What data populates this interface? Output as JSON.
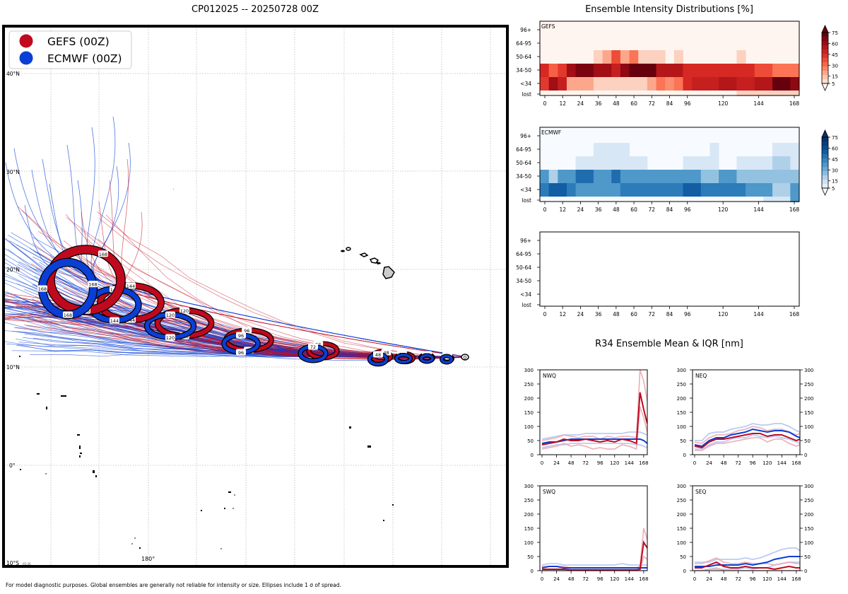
{
  "map": {
    "title": "CP012025 -- 20250728 00Z",
    "lat_labels": [
      "40°N",
      "30°N",
      "20°N",
      "10°N",
      "0°",
      "10°S"
    ],
    "lon_label": "180°",
    "small_stamp": "05:26",
    "legend": [
      {
        "label": "GEFS (00Z)",
        "color": "#c0091e"
      },
      {
        "label": "ECMWF (00Z)",
        "color": "#0a3fd6"
      }
    ],
    "footnote": "For model diagnostic purposes. Global ensembles are generally not reliable for intensity or size. Ellipses include 1 σ of spread."
  },
  "colors": {
    "gefs": "#c0091e",
    "gefs_light": "#e8a3ad",
    "ecmwf": "#0a3fd6",
    "ecmwf_light": "#a9bff0"
  },
  "chart_data": [
    {
      "type": "heatmap",
      "title": "Ensemble Intensity Distributions [%]",
      "panel_label": "GEFS",
      "y_categories": [
        "96+",
        "64-95",
        "50-64",
        "34-50",
        "<34",
        "lost"
      ],
      "x_ticks": [
        "0",
        "12",
        "24",
        "36",
        "48",
        "60",
        "72",
        "84",
        "96",
        "120",
        "144",
        "168"
      ],
      "colorbar_ticks": [
        "5",
        "15",
        "30",
        "45",
        "60",
        "75"
      ],
      "x_hours": [
        0,
        6,
        12,
        18,
        24,
        30,
        36,
        42,
        48,
        54,
        60,
        66,
        72,
        78,
        84,
        90,
        96,
        102,
        108,
        114,
        120,
        126,
        132,
        138,
        144,
        150,
        156,
        162,
        168
      ],
      "values": {
        "50-64": [
          0,
          0,
          0,
          0,
          0,
          0,
          10,
          20,
          40,
          20,
          30,
          10,
          10,
          10,
          0,
          10,
          0,
          0,
          0,
          0,
          0,
          0,
          10,
          0,
          0,
          0,
          0,
          0,
          0
        ],
        "34-50": [
          50,
          35,
          45,
          65,
          75,
          75,
          65,
          65,
          55,
          70,
          80,
          80,
          80,
          60,
          60,
          60,
          50,
          50,
          50,
          50,
          50,
          50,
          50,
          50,
          40,
          40,
          30,
          30,
          30
        ],
        "<34": [
          45,
          65,
          55,
          20,
          20,
          20,
          10,
          10,
          10,
          10,
          10,
          10,
          20,
          30,
          25,
          30,
          50,
          55,
          55,
          55,
          60,
          60,
          55,
          55,
          60,
          60,
          80,
          80,
          70
        ],
        "lost": [
          0,
          0,
          0,
          0,
          0,
          0,
          0,
          0,
          0,
          0,
          0,
          0,
          0,
          0,
          0,
          0,
          0,
          0,
          0,
          0,
          0,
          0,
          10,
          10,
          10,
          10,
          10,
          10,
          10
        ]
      }
    },
    {
      "type": "heatmap",
      "panel_label": "ECMWF",
      "y_categories": [
        "96+",
        "64-95",
        "50-64",
        "34-50",
        "<34",
        "lost"
      ],
      "x_ticks": [
        "0",
        "12",
        "24",
        "36",
        "48",
        "60",
        "72",
        "84",
        "96",
        "120",
        "144",
        "168"
      ],
      "colorbar_ticks": [
        "5",
        "15",
        "30",
        "45",
        "60",
        "75"
      ],
      "x_hours": [
        0,
        6,
        12,
        18,
        24,
        30,
        36,
        42,
        48,
        54,
        60,
        66,
        72,
        78,
        84,
        90,
        96,
        102,
        108,
        114,
        120,
        126,
        132,
        138,
        144,
        150,
        156,
        162,
        168
      ],
      "values": {
        "64-95": [
          0,
          0,
          0,
          0,
          0,
          0,
          10,
          10,
          10,
          10,
          0,
          0,
          0,
          0,
          0,
          0,
          0,
          0,
          0,
          10,
          0,
          0,
          0,
          0,
          0,
          0,
          10,
          10,
          10
        ],
        "50-64": [
          0,
          0,
          0,
          0,
          10,
          10,
          10,
          10,
          10,
          10,
          10,
          10,
          0,
          0,
          0,
          0,
          10,
          10,
          10,
          10,
          0,
          0,
          10,
          10,
          10,
          10,
          20,
          20,
          10
        ],
        "34-50": [
          40,
          20,
          40,
          40,
          55,
          55,
          40,
          40,
          55,
          40,
          40,
          40,
          40,
          40,
          40,
          40,
          40,
          40,
          25,
          25,
          40,
          40,
          25,
          25,
          25,
          25,
          25,
          25,
          25
        ],
        "<34": [
          50,
          60,
          60,
          50,
          40,
          40,
          40,
          40,
          40,
          50,
          50,
          50,
          50,
          50,
          50,
          50,
          60,
          60,
          50,
          50,
          50,
          50,
          50,
          40,
          40,
          40,
          20,
          20,
          40
        ],
        "lost": [
          0,
          0,
          0,
          0,
          0,
          0,
          0,
          0,
          0,
          0,
          0,
          0,
          0,
          0,
          0,
          0,
          0,
          0,
          0,
          0,
          0,
          0,
          0,
          0,
          0,
          10,
          10,
          10,
          40
        ]
      }
    },
    {
      "type": "heatmap",
      "panel_label": "",
      "y_categories": [
        "96+",
        "64-95",
        "50-64",
        "34-50",
        "<34",
        "lost"
      ],
      "x_ticks": [
        "0",
        "12",
        "24",
        "36",
        "48",
        "60",
        "72",
        "84",
        "96",
        "120",
        "144",
        "168"
      ],
      "values": {}
    },
    {
      "type": "line",
      "title": "R34 Ensemble Mean & IQR [nm]",
      "panel_label": "NWQ",
      "x_ticks": [
        "0",
        "24",
        "48",
        "72",
        "96",
        "120",
        "144",
        "168"
      ],
      "y_ticks": [
        "0",
        "50",
        "100",
        "150",
        "200",
        "250",
        "300"
      ],
      "ylim": [
        0,
        300
      ],
      "x": [
        0,
        12,
        24,
        36,
        48,
        60,
        72,
        84,
        96,
        108,
        120,
        132,
        144,
        156,
        162,
        168,
        174
      ],
      "series": [
        {
          "name": "GEFS mean",
          "values": [
            35,
            40,
            45,
            55,
            50,
            50,
            55,
            50,
            45,
            50,
            45,
            55,
            50,
            40,
            220,
            160,
            110
          ]
        },
        {
          "name": "GEFS IQR low",
          "values": [
            20,
            25,
            30,
            40,
            30,
            35,
            30,
            20,
            25,
            20,
            20,
            35,
            30,
            20,
            170,
            130,
            80
          ]
        },
        {
          "name": "GEFS IQR high",
          "values": [
            50,
            55,
            60,
            70,
            65,
            60,
            65,
            65,
            55,
            65,
            60,
            65,
            65,
            60,
            300,
            260,
            190
          ]
        },
        {
          "name": "ECMWF mean",
          "values": [
            40,
            45,
            45,
            50,
            55,
            55,
            55,
            55,
            55,
            55,
            55,
            55,
            55,
            55,
            55,
            50,
            40
          ]
        },
        {
          "name": "ECMWF IQR low",
          "values": [
            25,
            30,
            35,
            35,
            40,
            40,
            40,
            40,
            40,
            40,
            40,
            40,
            40,
            35,
            35,
            30,
            25
          ]
        },
        {
          "name": "ECMWF IQR high",
          "values": [
            55,
            60,
            65,
            70,
            70,
            70,
            75,
            75,
            75,
            75,
            75,
            75,
            80,
            80,
            80,
            75,
            70
          ]
        }
      ]
    },
    {
      "type": "line",
      "panel_label": "NEQ",
      "x_ticks": [
        "0",
        "24",
        "48",
        "72",
        "96",
        "120",
        "144",
        "168"
      ],
      "y_ticks": [
        "0",
        "50",
        "100",
        "150",
        "200",
        "250",
        "300"
      ],
      "ylim": [
        0,
        300
      ],
      "x": [
        0,
        12,
        24,
        36,
        48,
        60,
        72,
        84,
        96,
        108,
        120,
        132,
        144,
        156,
        168,
        174
      ],
      "series": [
        {
          "name": "GEFS mean",
          "values": [
            30,
            25,
            45,
            55,
            55,
            60,
            65,
            70,
            75,
            75,
            65,
            70,
            70,
            60,
            50,
            55
          ]
        },
        {
          "name": "GEFS IQR low",
          "values": [
            15,
            15,
            30,
            40,
            40,
            45,
            50,
            55,
            60,
            60,
            45,
            55,
            55,
            40,
            30,
            35
          ]
        },
        {
          "name": "GEFS IQR high",
          "values": [
            45,
            40,
            60,
            70,
            70,
            75,
            85,
            90,
            100,
            95,
            85,
            90,
            90,
            80,
            70,
            75
          ]
        },
        {
          "name": "ECMWF mean",
          "values": [
            35,
            30,
            50,
            60,
            60,
            70,
            75,
            80,
            90,
            85,
            80,
            85,
            85,
            80,
            65,
            60
          ]
        },
        {
          "name": "ECMWF IQR low",
          "values": [
            20,
            20,
            35,
            45,
            45,
            55,
            60,
            60,
            70,
            65,
            60,
            65,
            60,
            55,
            45,
            40
          ]
        },
        {
          "name": "ECMWF IQR high",
          "values": [
            50,
            50,
            75,
            80,
            80,
            90,
            95,
            100,
            110,
            105,
            105,
            110,
            110,
            100,
            85,
            80
          ]
        }
      ]
    },
    {
      "type": "line",
      "panel_label": "SWQ",
      "x_ticks": [
        "0",
        "24",
        "48",
        "72",
        "96",
        "120",
        "144",
        "168"
      ],
      "y_ticks": [
        "0",
        "50",
        "100",
        "150",
        "200",
        "250",
        "300"
      ],
      "ylim": [
        0,
        300
      ],
      "x": [
        0,
        12,
        24,
        36,
        48,
        60,
        72,
        84,
        96,
        108,
        120,
        132,
        144,
        156,
        162,
        168,
        174
      ],
      "series": [
        {
          "name": "GEFS mean",
          "values": [
            5,
            5,
            5,
            5,
            3,
            3,
            3,
            3,
            3,
            3,
            3,
            3,
            3,
            3,
            5,
            100,
            80
          ]
        },
        {
          "name": "GEFS IQR low",
          "values": [
            0,
            0,
            0,
            0,
            0,
            0,
            0,
            0,
            0,
            0,
            0,
            0,
            0,
            0,
            0,
            50,
            40
          ]
        },
        {
          "name": "GEFS IQR high",
          "values": [
            15,
            15,
            15,
            15,
            10,
            10,
            10,
            10,
            10,
            10,
            10,
            10,
            10,
            10,
            15,
            150,
            110
          ]
        },
        {
          "name": "ECMWF mean",
          "values": [
            10,
            15,
            15,
            10,
            10,
            10,
            10,
            10,
            10,
            10,
            10,
            10,
            10,
            10,
            10,
            10,
            10
          ]
        },
        {
          "name": "ECMWF IQR low",
          "values": [
            0,
            0,
            0,
            0,
            0,
            0,
            0,
            0,
            0,
            0,
            0,
            0,
            0,
            0,
            0,
            0,
            0
          ]
        },
        {
          "name": "ECMWF IQR high",
          "values": [
            20,
            25,
            25,
            20,
            20,
            20,
            20,
            20,
            20,
            20,
            20,
            25,
            20,
            20,
            20,
            20,
            20
          ]
        }
      ]
    },
    {
      "type": "line",
      "panel_label": "SEQ",
      "x_ticks": [
        "0",
        "24",
        "48",
        "72",
        "96",
        "120",
        "144",
        "168"
      ],
      "y_ticks": [
        "0",
        "50",
        "100",
        "150",
        "200",
        "250",
        "300"
      ],
      "ylim": [
        0,
        300
      ],
      "x": [
        0,
        12,
        24,
        36,
        48,
        60,
        72,
        84,
        96,
        108,
        120,
        132,
        144,
        156,
        168,
        174
      ],
      "series": [
        {
          "name": "GEFS mean",
          "values": [
            10,
            10,
            20,
            30,
            15,
            10,
            10,
            15,
            10,
            10,
            10,
            5,
            10,
            15,
            10,
            10
          ]
        },
        {
          "name": "GEFS IQR low",
          "values": [
            0,
            0,
            5,
            10,
            0,
            0,
            0,
            0,
            0,
            0,
            0,
            0,
            0,
            0,
            0,
            0
          ]
        },
        {
          "name": "GEFS IQR high",
          "values": [
            25,
            25,
            35,
            45,
            30,
            25,
            25,
            30,
            25,
            25,
            25,
            20,
            25,
            30,
            25,
            25
          ]
        },
        {
          "name": "ECMWF mean",
          "values": [
            15,
            15,
            15,
            20,
            20,
            20,
            20,
            25,
            20,
            25,
            30,
            40,
            45,
            50,
            50,
            50
          ]
        },
        {
          "name": "ECMWF IQR low",
          "values": [
            0,
            0,
            5,
            5,
            5,
            5,
            5,
            10,
            5,
            10,
            10,
            20,
            25,
            30,
            30,
            30
          ]
        },
        {
          "name": "ECMWF IQR high",
          "values": [
            30,
            30,
            30,
            40,
            40,
            40,
            40,
            45,
            40,
            45,
            55,
            65,
            75,
            80,
            80,
            70
          ]
        }
      ]
    }
  ]
}
